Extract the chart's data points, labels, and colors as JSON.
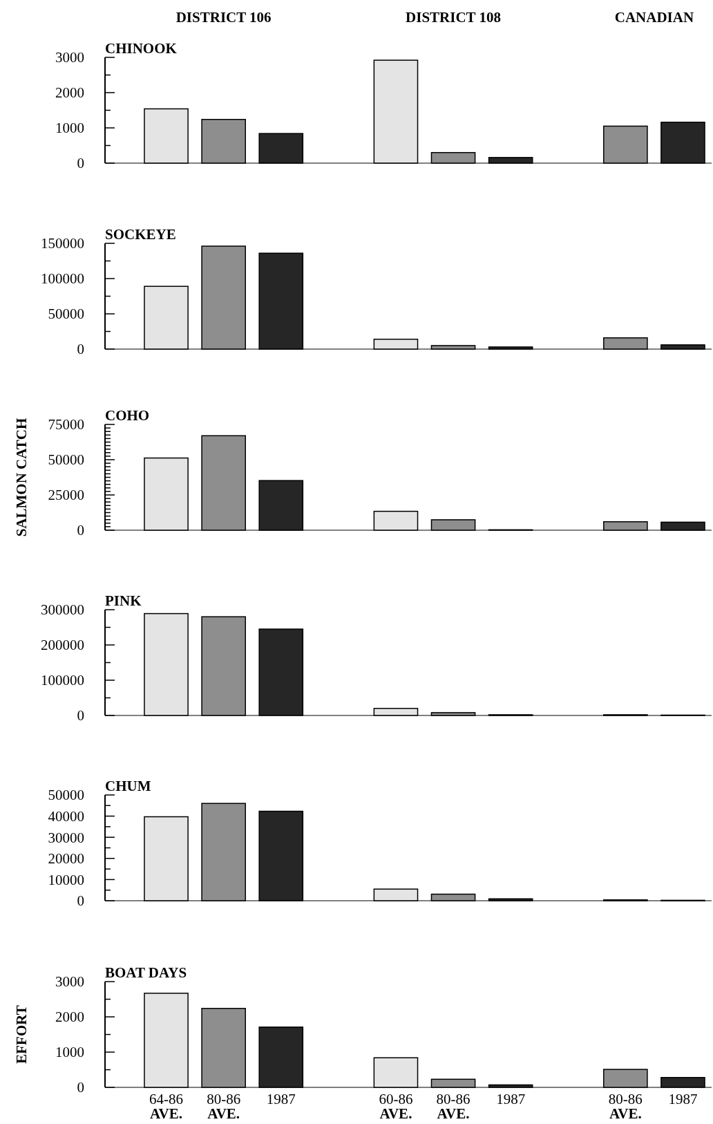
{
  "chart_data": [
    {
      "type": "bar",
      "title": "CHINOOK",
      "annotations": [
        "DISTRICT 106",
        "DISTRICT 108",
        "CANADIAN"
      ],
      "categories": [
        null,
        null,
        null,
        null,
        null,
        null,
        null,
        null,
        null,
        null
      ],
      "values": [
        1540,
        1240,
        840,
        null,
        2920,
        300,
        160,
        null,
        1050,
        1160
      ],
      "colors": [
        "#e4e4e4",
        "#8e8e8e",
        "#262626",
        null,
        "#e4e4e4",
        "#8e8e8e",
        "#262626",
        null,
        "#8e8e8e",
        "#262626"
      ],
      "ylim": [
        0,
        3000
      ],
      "yticks": [
        0,
        {
          "value": 500,
          "label": null
        },
        1000,
        {
          "value": 1500,
          "label": null
        },
        2000,
        {
          "value": 2500,
          "label": null
        },
        3000
      ],
      "tick_labels": "y"
    },
    {
      "type": "bar",
      "title": "SOCKEYE",
      "categories": [
        null,
        null,
        null,
        null,
        null,
        null,
        null,
        null,
        null,
        null
      ],
      "values": [
        89000,
        146000,
        136000,
        null,
        14000,
        5000,
        3000,
        null,
        16000,
        6000
      ],
      "colors": [
        "#e4e4e4",
        "#8e8e8e",
        "#262626",
        null,
        "#e4e4e4",
        "#8e8e8e",
        "#262626",
        null,
        "#8e8e8e",
        "#262626"
      ],
      "ylim": [
        0,
        150000
      ],
      "yticks": [
        0,
        {
          "value": 25000,
          "label": null
        },
        50000,
        {
          "value": 75000,
          "label": null
        },
        100000,
        {
          "value": 125000,
          "label": null
        },
        150000
      ],
      "tick_labels": "y"
    },
    {
      "type": "bar",
      "title": "COHO",
      "ylabel": "SALMON CATCH",
      "categories": [
        null,
        null,
        null,
        null,
        null,
        null,
        null,
        null,
        null,
        null
      ],
      "values": [
        51200,
        67000,
        35200,
        null,
        13400,
        7400,
        300,
        null,
        6000,
        5700
      ],
      "colors": [
        "#e4e4e4",
        "#8e8e8e",
        "#262626",
        null,
        "#e4e4e4",
        "#8e8e8e",
        "#262626",
        null,
        "#8e8e8e",
        "#262626"
      ],
      "ylim": [
        0,
        75000
      ],
      "yticks": [
        0,
        {
          "value": 2500,
          "label": null
        },
        {
          "value": 5000,
          "label": null
        },
        {
          "value": 7500,
          "label": null
        },
        {
          "value": 10000,
          "label": null
        },
        {
          "value": 12500,
          "label": null
        },
        {
          "value": 15000,
          "label": null
        },
        {
          "value": 17500,
          "label": null
        },
        {
          "value": 20000,
          "label": null
        },
        {
          "value": 22500,
          "label": null
        },
        25000,
        {
          "value": 27500,
          "label": null
        },
        {
          "value": 30000,
          "label": null
        },
        {
          "value": 32500,
          "label": null
        },
        {
          "value": 35000,
          "label": null
        },
        {
          "value": 37500,
          "label": null
        },
        {
          "value": 40000,
          "label": null
        },
        {
          "value": 42500,
          "label": null
        },
        {
          "value": 45000,
          "label": null
        },
        {
          "value": 47500,
          "label": null
        },
        50000,
        {
          "value": 52500,
          "label": null
        },
        {
          "value": 55000,
          "label": null
        },
        {
          "value": 57500,
          "label": null
        },
        {
          "value": 60000,
          "label": null
        },
        {
          "value": 62500,
          "label": null
        },
        {
          "value": 65000,
          "label": null
        },
        {
          "value": 67500,
          "label": null
        },
        {
          "value": 70000,
          "label": null
        },
        {
          "value": 72500,
          "label": null
        },
        75000
      ],
      "tick_labels": "y"
    },
    {
      "type": "bar",
      "title": "PINK",
      "categories": [
        null,
        null,
        null,
        null,
        null,
        null,
        null,
        null,
        null,
        null
      ],
      "values": [
        289000,
        280000,
        245000,
        null,
        20000,
        8000,
        2000,
        null,
        2000,
        1000
      ],
      "colors": [
        "#e4e4e4",
        "#8e8e8e",
        "#262626",
        null,
        "#e4e4e4",
        "#8e8e8e",
        "#262626",
        null,
        "#8e8e8e",
        "#262626"
      ],
      "ylim": [
        0,
        300000
      ],
      "yticks": [
        0,
        {
          "value": 50000,
          "label": null
        },
        100000,
        {
          "value": 150000,
          "label": null
        },
        200000,
        {
          "value": 250000,
          "label": null
        },
        300000
      ],
      "tick_labels": "y"
    },
    {
      "type": "bar",
      "title": "CHUM",
      "categories": [
        null,
        null,
        null,
        null,
        null,
        null,
        null,
        null,
        null,
        null
      ],
      "values": [
        39700,
        46000,
        42300,
        null,
        5500,
        3100,
        900,
        null,
        400,
        200
      ],
      "colors": [
        "#e4e4e4",
        "#8e8e8e",
        "#262626",
        null,
        "#e4e4e4",
        "#8e8e8e",
        "#262626",
        null,
        "#8e8e8e",
        "#262626"
      ],
      "ylim": [
        0,
        50000
      ],
      "yticks": [
        0,
        {
          "value": 5000,
          "label": null
        },
        10000,
        {
          "value": 15000,
          "label": null
        },
        20000,
        {
          "value": 25000,
          "label": null
        },
        30000,
        {
          "value": 35000,
          "label": null
        },
        40000,
        {
          "value": 45000,
          "label": null
        },
        50000
      ],
      "tick_labels": "y"
    },
    {
      "type": "bar",
      "title": "BOAT DAYS",
      "ylabel": "EFFORT",
      "categories": [
        "64-86 AVE.",
        "80-86 AVE.",
        "1987",
        null,
        "60-86 AVE.",
        "80-86 AVE.",
        "1987",
        null,
        "80-86 AVE.",
        "1987"
      ],
      "values": [
        2670,
        2240,
        1710,
        null,
        840,
        230,
        70,
        null,
        510,
        280
      ],
      "colors": [
        "#e4e4e4",
        "#8e8e8e",
        "#262626",
        null,
        "#e4e4e4",
        "#8e8e8e",
        "#262626",
        null,
        "#8e8e8e",
        "#262626"
      ],
      "ylim": [
        0,
        3000
      ],
      "yticks": [
        0,
        {
          "value": 500,
          "label": null
        },
        1000,
        {
          "value": 1500,
          "label": null
        },
        2000,
        {
          "value": 2500,
          "label": null
        },
        3000
      ]
    }
  ]
}
